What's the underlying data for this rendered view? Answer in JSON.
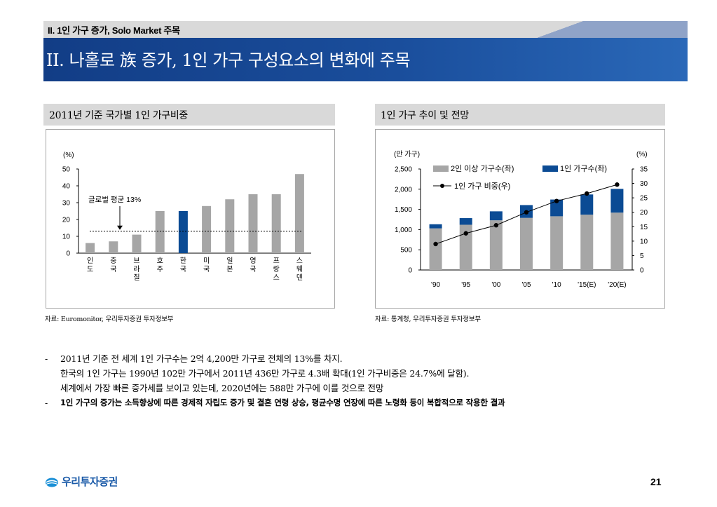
{
  "header": {
    "section_label": "II. 1인 가구 증가, Solo Market 주목",
    "page_title": "II. 나홀로 族 증가, 1인 가구 구성요소의 변화에 주목"
  },
  "left_panel": {
    "header": "2011년 기준 국가별 1인 가구비중",
    "source": "자료: Euromonitor, 우리투자증권 투자정보부"
  },
  "right_panel": {
    "header": "1인 가구 추이 및 전망",
    "source": "자료: 통계청, 우리투자증권 투자정보부"
  },
  "chart_data": [
    {
      "type": "bar",
      "ylabel": "(%)",
      "ylim": [
        0,
        50
      ],
      "yticks": [
        "50",
        "40",
        "30",
        "20",
        "10",
        "0"
      ],
      "categories": [
        "인도",
        "중국",
        "브라질",
        "호주",
        "한국",
        "미국",
        "일본",
        "영국",
        "프랑스",
        "스웨덴"
      ],
      "values": [
        6,
        7,
        11,
        25,
        25,
        28,
        32,
        35,
        35,
        47
      ],
      "highlight_index": 4,
      "colors": {
        "bar": "#a6a6a6",
        "highlight": "#0b4b94"
      },
      "reference_line": {
        "value": 13,
        "label": "글로벌 평균 13%"
      }
    },
    {
      "type": "bar",
      "ylabel_left": "(만 가구)",
      "ylabel_right": "(%)",
      "ylim_left": [
        0,
        2500
      ],
      "ylim_right": [
        0,
        35
      ],
      "yticks_left": [
        "2,500",
        "2,000",
        "1,500",
        "1,000",
        "500",
        "0"
      ],
      "yticks_right": [
        "35",
        "30",
        "25",
        "20",
        "15",
        "10",
        "5",
        "0"
      ],
      "categories": [
        "'90",
        "'95",
        "'00",
        "'05",
        "'10",
        "'15(E)",
        "'20(E)"
      ],
      "series": [
        {
          "name": "2인 이상 가구수(좌)",
          "values": [
            1030,
            1120,
            1230,
            1290,
            1330,
            1370,
            1420
          ],
          "color": "#a6a6a6"
        },
        {
          "name": "1인 가구수(좌)",
          "values": [
            102,
            164,
            222,
            317,
            414,
            500,
            588
          ],
          "color": "#0b4b94"
        },
        {
          "name": "1인 가구 비중(우)",
          "values": [
            9.0,
            12.7,
            15.5,
            20.0,
            23.9,
            26.5,
            29.6
          ],
          "color": "#000000"
        }
      ]
    }
  ],
  "bullets": [
    {
      "dash": "-",
      "lines": [
        "2011년 기준 전 세계 1인 가구수는 2억 4,200만 가구로 전체의 13%를 차지.",
        "한국의 1인 가구는 1990년 102만 가구에서 2011년 436만 가구로 4.3배 확대(1인 가구비중은 24.7%에 달함).",
        "세계에서 가장 빠른 증가세를 보이고 있는데, 2020년에는 588만 가구에 이를 것으로 전망"
      ]
    },
    {
      "dash": "-",
      "lines": [
        "1인 가구의 증가는 소득향상에 따른 경제적 자립도 증가 및 결혼 연령 상승, 평균수명 연장에 따른 노령화 등이 복합적으로 작용한 결과"
      ]
    }
  ],
  "footer": {
    "logo_text": "우리투자증권",
    "page_number": "21",
    "logo_color": "#1a5aa8"
  }
}
